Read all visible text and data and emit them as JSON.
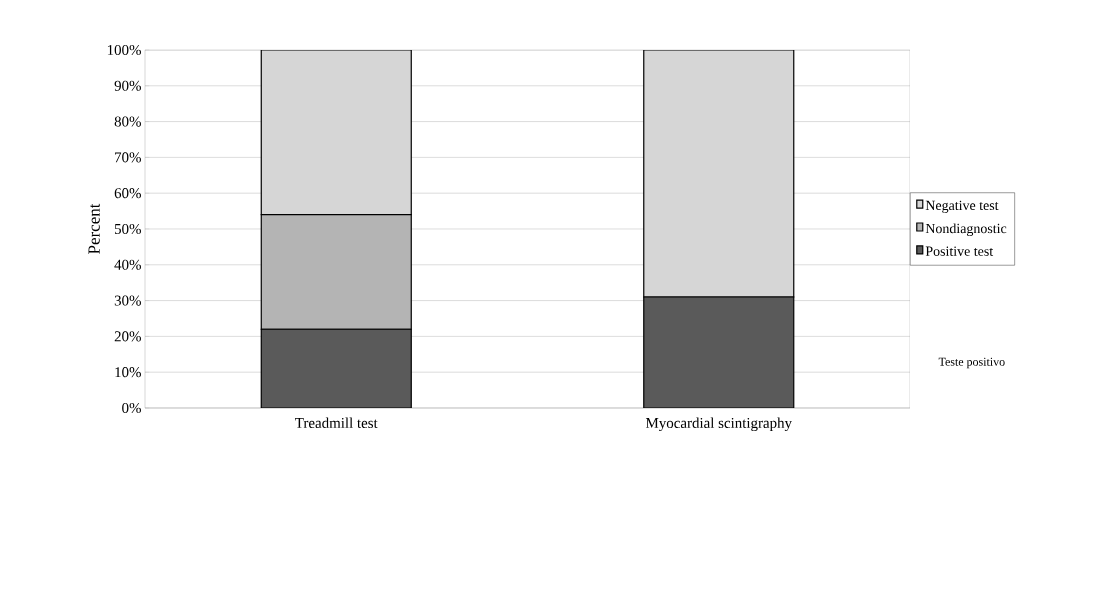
{
  "chart_data": {
    "type": "bar",
    "stacked": true,
    "ylabel": "Percent",
    "categories": [
      "Treadmill test",
      "Myocardial scintigraphy"
    ],
    "series": [
      {
        "name": "Positive test",
        "color": "#5a5a5a",
        "values": [
          22,
          31
        ]
      },
      {
        "name": "Nondiagnostic",
        "color": "#b4b4b4",
        "values": [
          32,
          0
        ]
      },
      {
        "name": "Negative test",
        "color": "#d6d6d6",
        "values": [
          46,
          69
        ]
      }
    ],
    "ylim": [
      0,
      100
    ],
    "yticks": [
      {
        "value": 0,
        "label": "0%"
      },
      {
        "value": 10,
        "label": "10%"
      },
      {
        "value": 20,
        "label": "20%"
      },
      {
        "value": 30,
        "label": "30%"
      },
      {
        "value": 40,
        "label": "40%"
      },
      {
        "value": 50,
        "label": "50%"
      },
      {
        "value": 60,
        "label": "60%"
      },
      {
        "value": 70,
        "label": "70%"
      },
      {
        "value": 80,
        "label": "80%"
      },
      {
        "value": 90,
        "label": "90%"
      },
      {
        "value": 100,
        "label": "100%"
      }
    ],
    "grid": "y",
    "legend": "right",
    "annotations": [
      "Teste positivo"
    ]
  }
}
